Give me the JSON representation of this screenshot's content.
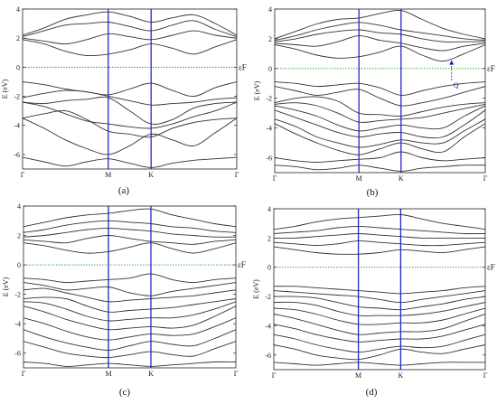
{
  "figure": {
    "captions": [
      "(a)",
      "(b)",
      "(c)",
      "(d)"
    ]
  },
  "chart_data": [
    {
      "type": "line",
      "panel": "(a)",
      "ylabel": "E (eV)",
      "fermi_label": "εF",
      "ylim": [
        -7,
        4
      ],
      "yticks": [
        4,
        2,
        0,
        -2,
        -4,
        -6
      ],
      "xticks": [
        "Γ",
        "M",
        "K",
        "Γ"
      ],
      "xtick_positions": [
        0,
        1,
        1.5,
        2.5
      ],
      "fermi_level": 0,
      "kpoints": [
        0,
        0.25,
        0.5,
        0.75,
        1,
        1.25,
        1.5,
        1.75,
        2,
        2.25,
        2.5
      ],
      "series": [
        {
          "values": [
            -6.2,
            -6.5,
            -6.8,
            -6.5,
            -6.3,
            -6.6,
            -6.9,
            -6.6,
            -6.4,
            -6.3,
            -6.2
          ]
        },
        {
          "values": [
            -3.5,
            -4.2,
            -5.0,
            -5.6,
            -6.0,
            -5.4,
            -4.6,
            -5.0,
            -5.4,
            -4.5,
            -3.5
          ]
        },
        {
          "values": [
            -3.5,
            -3.2,
            -3.0,
            -3.6,
            -4.4,
            -4.6,
            -4.8,
            -4.2,
            -3.8,
            -3.6,
            -3.5
          ]
        },
        {
          "values": [
            -2.4,
            -2.7,
            -3.2,
            -3.7,
            -3.9,
            -4.1,
            -4.2,
            -3.9,
            -3.4,
            -3.0,
            -2.4
          ]
        },
        {
          "values": [
            -2.4,
            -2.5,
            -2.3,
            -2.2,
            -2.1,
            -3.0,
            -3.9,
            -3.6,
            -2.8,
            -2.5,
            -2.4
          ]
        },
        {
          "values": [
            -2.1,
            -1.8,
            -1.6,
            -1.7,
            -2.0,
            -2.3,
            -2.6,
            -2.5,
            -2.4,
            -2.2,
            -2.1
          ]
        },
        {
          "values": [
            -1.0,
            -1.2,
            -1.5,
            -1.7,
            -1.9,
            -1.5,
            -1.1,
            -1.6,
            -2.0,
            -1.4,
            -1.0
          ]
        },
        {
          "values": [
            1.9,
            1.6,
            1.1,
            0.8,
            0.9,
            1.2,
            1.6,
            1.3,
            0.9,
            1.4,
            1.9
          ]
        },
        {
          "values": [
            2.0,
            1.8,
            1.6,
            1.9,
            2.3,
            2.1,
            1.9,
            2.2,
            2.5,
            2.2,
            2.0
          ]
        },
        {
          "values": [
            2.1,
            2.5,
            2.9,
            3.0,
            3.1,
            2.8,
            2.5,
            2.9,
            3.2,
            2.6,
            2.1
          ]
        },
        {
          "values": [
            2.2,
            2.7,
            3.3,
            3.6,
            3.8,
            3.5,
            3.1,
            3.4,
            3.6,
            3.0,
            2.2
          ]
        }
      ]
    },
    {
      "type": "line",
      "panel": "(b)",
      "ylabel": "E (eV)",
      "fermi_label": "εF",
      "annotation": "Q",
      "ylim": [
        -7,
        4
      ],
      "yticks": [
        4,
        2,
        0,
        -2,
        -4,
        -6
      ],
      "xticks": [
        "Γ",
        "M",
        "K",
        "Γ"
      ],
      "xtick_positions": [
        0,
        1,
        1.5,
        2.5
      ],
      "fermi_level": 0,
      "kpoints": [
        0,
        0.25,
        0.5,
        0.75,
        1,
        1.25,
        1.5,
        1.75,
        2,
        2.25,
        2.5
      ],
      "series": [
        {
          "values": [
            -6.5,
            -6.6,
            -6.8,
            -6.7,
            -6.5,
            -6.7,
            -6.9,
            -6.7,
            -6.6,
            -6.5,
            -6.5
          ]
        },
        {
          "values": [
            -6.0,
            -6.2,
            -6.3,
            -6.2,
            -6.1,
            -6.0,
            -5.6,
            -6.0,
            -6.2,
            -6.1,
            -6.0
          ]
        },
        {
          "values": [
            -3.7,
            -4.4,
            -5.0,
            -5.5,
            -5.8,
            -5.4,
            -5.0,
            -5.4,
            -5.6,
            -4.6,
            -3.7
          ]
        },
        {
          "values": [
            -3.4,
            -3.9,
            -4.6,
            -5.0,
            -5.3,
            -5.1,
            -4.8,
            -5.0,
            -5.0,
            -4.2,
            -3.4
          ]
        },
        {
          "values": [
            -2.8,
            -3.3,
            -3.8,
            -4.3,
            -4.6,
            -4.4,
            -4.3,
            -4.6,
            -4.6,
            -3.8,
            -2.8
          ]
        },
        {
          "values": [
            -2.5,
            -2.8,
            -3.2,
            -3.8,
            -4.2,
            -4.0,
            -3.8,
            -4.0,
            -4.0,
            -3.2,
            -2.5
          ]
        },
        {
          "values": [
            -2.4,
            -2.3,
            -2.5,
            -3.0,
            -3.6,
            -3.5,
            -3.4,
            -3.3,
            -3.0,
            -2.7,
            -2.4
          ]
        },
        {
          "values": [
            -2.3,
            -2.0,
            -1.9,
            -2.2,
            -3.0,
            -3.1,
            -3.2,
            -2.9,
            -2.6,
            -2.4,
            -2.3
          ]
        },
        {
          "values": [
            -1.2,
            -1.5,
            -1.8,
            -1.6,
            -1.4,
            -2.0,
            -2.5,
            -2.3,
            -2.0,
            -1.6,
            -1.2
          ]
        },
        {
          "values": [
            -0.9,
            -1.0,
            -1.2,
            -1.1,
            -1.0,
            -1.3,
            -1.8,
            -1.5,
            -1.2,
            -1.0,
            -0.9
          ]
        },
        {
          "values": [
            1.6,
            1.3,
            0.9,
            0.7,
            0.8,
            1.1,
            1.5,
            0.9,
            0.5,
            1.0,
            1.6
          ]
        },
        {
          "values": [
            1.7,
            1.6,
            1.5,
            1.8,
            2.2,
            1.9,
            1.7,
            1.4,
            1.2,
            1.5,
            1.7
          ]
        },
        {
          "values": [
            1.8,
            2.0,
            2.3,
            2.5,
            2.6,
            2.4,
            2.3,
            2.0,
            1.8,
            1.8,
            1.8
          ]
        },
        {
          "values": [
            1.9,
            2.2,
            2.6,
            2.9,
            3.1,
            2.9,
            2.6,
            2.4,
            2.2,
            2.0,
            1.9
          ]
        },
        {
          "values": [
            2.0,
            2.5,
            3.0,
            3.3,
            3.4,
            3.7,
            3.9,
            3.3,
            2.7,
            2.3,
            2.0
          ]
        }
      ]
    },
    {
      "type": "line",
      "panel": "(c)",
      "ylabel": "E (eV)",
      "fermi_label": "εF",
      "ylim": [
        -7,
        4
      ],
      "yticks": [
        4,
        2,
        0,
        -2,
        -4,
        -6
      ],
      "xticks": [
        "Γ",
        "M",
        "K",
        "Γ"
      ],
      "xtick_positions": [
        0,
        1,
        1.5,
        2.5
      ],
      "fermi_level": 0,
      "kpoints": [
        0,
        0.25,
        0.5,
        0.75,
        1,
        1.25,
        1.5,
        1.75,
        2,
        2.25,
        2.5
      ],
      "series": [
        {
          "values": [
            -6.6,
            -6.7,
            -6.9,
            -6.8,
            -6.7,
            -6.8,
            -6.9,
            -6.8,
            -6.7,
            -6.6,
            -6.6
          ]
        },
        {
          "values": [
            -5.2,
            -5.6,
            -6.0,
            -6.2,
            -6.3,
            -6.1,
            -5.9,
            -6.1,
            -6.2,
            -5.7,
            -5.2
          ]
        },
        {
          "values": [
            -4.4,
            -4.9,
            -5.3,
            -5.6,
            -5.8,
            -5.5,
            -5.2,
            -5.4,
            -5.5,
            -5.0,
            -4.4
          ]
        },
        {
          "values": [
            -3.6,
            -4.0,
            -4.5,
            -4.9,
            -5.1,
            -4.9,
            -4.7,
            -4.8,
            -4.7,
            -4.2,
            -3.6
          ]
        },
        {
          "values": [
            -2.8,
            -3.2,
            -3.7,
            -4.1,
            -4.4,
            -4.3,
            -4.2,
            -4.3,
            -4.1,
            -3.5,
            -2.8
          ]
        },
        {
          "values": [
            -2.5,
            -2.6,
            -3.0,
            -3.5,
            -3.8,
            -3.7,
            -3.6,
            -3.6,
            -3.4,
            -3.0,
            -2.5
          ]
        },
        {
          "values": [
            -2.3,
            -2.2,
            -2.3,
            -2.8,
            -3.2,
            -3.1,
            -3.0,
            -2.9,
            -2.7,
            -2.5,
            -2.3
          ]
        },
        {
          "values": [
            -1.7,
            -1.6,
            -1.9,
            -2.2,
            -2.5,
            -2.4,
            -2.3,
            -2.2,
            -2.1,
            -1.9,
            -1.7
          ]
        },
        {
          "values": [
            -1.2,
            -1.4,
            -1.7,
            -1.6,
            -1.5,
            -1.9,
            -2.1,
            -1.8,
            -1.6,
            -1.4,
            -1.2
          ]
        },
        {
          "values": [
            -0.9,
            -1.0,
            -1.2,
            -1.1,
            -1.0,
            -0.9,
            -0.6,
            -1.0,
            -1.2,
            -1.0,
            -0.9
          ]
        },
        {
          "values": [
            1.5,
            1.3,
            1.0,
            0.8,
            0.9,
            1.2,
            1.5,
            1.1,
            0.8,
            1.1,
            1.5
          ]
        },
        {
          "values": [
            1.7,
            1.6,
            1.5,
            1.8,
            2.0,
            1.8,
            1.6,
            1.5,
            1.4,
            1.6,
            1.7
          ]
        },
        {
          "values": [
            1.9,
            2.0,
            2.2,
            2.4,
            2.5,
            2.4,
            2.3,
            2.1,
            2.0,
            1.9,
            1.9
          ]
        },
        {
          "values": [
            2.2,
            2.4,
            2.7,
            2.9,
            3.0,
            2.9,
            2.8,
            2.6,
            2.5,
            2.3,
            2.2
          ]
        },
        {
          "values": [
            2.6,
            2.9,
            3.2,
            3.4,
            3.5,
            3.7,
            3.8,
            3.4,
            3.1,
            2.8,
            2.6
          ]
        }
      ]
    },
    {
      "type": "line",
      "panel": "(d)",
      "ylabel": "E (eV)",
      "fermi_label": "εF",
      "ylim": [
        -7,
        4
      ],
      "yticks": [
        4,
        2,
        0,
        -2,
        -4,
        -6
      ],
      "xticks": [
        "Γ",
        "M",
        "K",
        "Γ"
      ],
      "xtick_positions": [
        0,
        1,
        1.5,
        2.5
      ],
      "fermi_level": 0,
      "kpoints": [
        0,
        0.25,
        0.5,
        0.75,
        1,
        1.25,
        1.5,
        1.75,
        2,
        2.25,
        2.5
      ],
      "series": [
        {
          "values": [
            -6.5,
            -6.6,
            -6.7,
            -6.6,
            -6.5,
            -6.6,
            -6.7,
            -6.6,
            -6.5,
            -6.5,
            -6.5
          ]
        },
        {
          "values": [
            -5.3,
            -5.6,
            -6.0,
            -6.2,
            -6.3,
            -6.0,
            -5.6,
            -5.8,
            -5.9,
            -5.6,
            -5.3
          ]
        },
        {
          "values": [
            -4.6,
            -4.9,
            -5.3,
            -5.6,
            -5.8,
            -5.6,
            -5.4,
            -5.5,
            -5.4,
            -5.0,
            -4.6
          ]
        },
        {
          "values": [
            -3.9,
            -4.2,
            -4.6,
            -4.9,
            -5.1,
            -5.0,
            -4.9,
            -4.9,
            -4.7,
            -4.3,
            -3.9
          ]
        },
        {
          "values": [
            -3.2,
            -3.5,
            -3.9,
            -4.3,
            -4.6,
            -4.5,
            -4.4,
            -4.4,
            -4.2,
            -3.7,
            -3.2
          ]
        },
        {
          "values": [
            -2.8,
            -2.9,
            -3.2,
            -3.6,
            -3.9,
            -3.9,
            -3.8,
            -3.8,
            -3.6,
            -3.2,
            -2.8
          ]
        },
        {
          "values": [
            -2.4,
            -2.4,
            -2.6,
            -3.0,
            -3.3,
            -3.3,
            -3.3,
            -3.2,
            -3.0,
            -2.7,
            -2.4
          ]
        },
        {
          "values": [
            -2.0,
            -2.0,
            -2.1,
            -2.4,
            -2.7,
            -2.8,
            -2.9,
            -2.7,
            -2.5,
            -2.2,
            -2.0
          ]
        },
        {
          "values": [
            -1.6,
            -1.7,
            -1.8,
            -1.9,
            -2.0,
            -2.2,
            -2.4,
            -2.2,
            -2.0,
            -1.8,
            -1.6
          ]
        },
        {
          "values": [
            -1.3,
            -1.3,
            -1.4,
            -1.5,
            -1.6,
            -1.7,
            -1.8,
            -1.7,
            -1.6,
            -1.4,
            -1.3
          ]
        },
        {
          "values": [
            1.4,
            1.2,
            1.0,
            0.9,
            0.9,
            1.0,
            1.2,
            1.1,
            1.0,
            1.2,
            1.4
          ]
        },
        {
          "values": [
            1.7,
            1.6,
            1.5,
            1.6,
            1.8,
            1.7,
            1.6,
            1.5,
            1.5,
            1.6,
            1.7
          ]
        },
        {
          "values": [
            2.0,
            2.0,
            2.1,
            2.2,
            2.3,
            2.2,
            2.1,
            2.0,
            2.0,
            2.0,
            2.0
          ]
        },
        {
          "values": [
            2.3,
            2.4,
            2.5,
            2.7,
            2.8,
            2.7,
            2.6,
            2.5,
            2.4,
            2.3,
            2.3
          ]
        },
        {
          "values": [
            2.6,
            2.8,
            3.1,
            3.3,
            3.4,
            3.5,
            3.6,
            3.3,
            3.0,
            2.8,
            2.6
          ]
        }
      ]
    }
  ]
}
